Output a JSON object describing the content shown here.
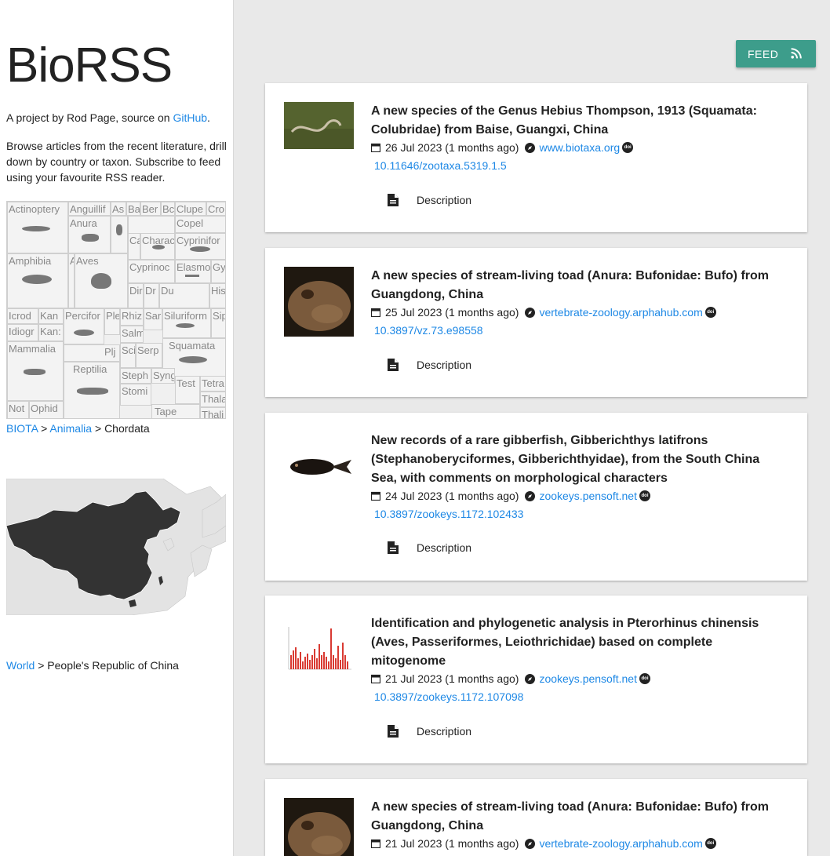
{
  "sidebar": {
    "site_title": "BioRSS",
    "intro_prefix": "A project by Rod Page, source on ",
    "intro_link": "GitHub",
    "intro_suffix": ".",
    "browse_text": "Browse articles from the recent literature, drill down by country or taxon. Subscribe to feed using your favourite RSS reader.",
    "treemap_labels": [
      "Actinoptery",
      "Anguillif",
      "As",
      "Ba",
      "Ber",
      "Bc",
      "Clupe",
      "Cro",
      "Anura",
      "Copel",
      "Ca",
      "Charac",
      "Cyprinifor",
      "Amphibia",
      "A",
      "Aves",
      "Cyprinoc",
      "Elasmo",
      "Gy",
      "Dir",
      "Dr",
      "Du",
      "His",
      "Icrod",
      "Kan",
      "Percifor",
      "Ple",
      "Rhiz",
      "Sar",
      "Siluriform",
      "Sip",
      "Idiogr",
      "Kan:",
      "Salm",
      "Mammalia",
      "Plj",
      "Squamata",
      "Sci",
      "Serp",
      "Reptilia",
      "Steph",
      "Syng",
      "Test",
      "Tetra",
      "Stomi",
      "Thala",
      "Not",
      "Ophid",
      "Tape",
      "Thali"
    ],
    "taxon_crumbs": {
      "link1": "BIOTA",
      "sep1": " > ",
      "link2": "Animalia",
      "sep2": " > ",
      "current": "Chordata"
    },
    "geo_crumbs": {
      "link1": "World",
      "sep1": " > ",
      "current": "People's Republic of China"
    }
  },
  "header": {
    "feed_label": "FEED"
  },
  "articles": [
    {
      "title": "A new species of the Genus Hebius Thompson, 1913 (Squamata: Colubridae) from Baise, Guangxi, China",
      "date": "26 Jul 2023 (1 months ago)",
      "source": "www.biotaxa.org",
      "doi": "10.11646/zootaxa.5319.1.5",
      "description_label": "Description"
    },
    {
      "title": "A new species of stream-living toad (Anura: Bufonidae: Bufo) from Guangdong, China",
      "date": "25 Jul 2023 (1 months ago)",
      "source": "vertebrate-zoology.arphahub.com",
      "doi": "10.3897/vz.73.e98558",
      "description_label": "Description"
    },
    {
      "title": "New records of a rare gibberfish, Gibberichthys latifrons (Stephanoberyciformes, Gibberichthyidae), from the South China Sea, with comments on morphological characters",
      "date": "24 Jul 2023 (1 months ago)",
      "source": "zookeys.pensoft.net",
      "doi": "10.3897/zookeys.1172.102433",
      "description_label": "Description"
    },
    {
      "title": "Identification and phylogenetic analysis in Pterorhinus chinensis (Aves, Passeriformes, Leiothrichidae) based on complete mitogenome",
      "date": "21 Jul 2023 (1 months ago)",
      "source": "zookeys.pensoft.net",
      "doi": "10.3897/zookeys.1172.107098",
      "description_label": "Description"
    },
    {
      "title": "A new species of stream-living toad (Anura: Bufonidae: Bufo) from Guangdong, China",
      "date": "21 Jul 2023 (1 months ago)",
      "source": "vertebrate-zoology.arphahub.com",
      "doi": "",
      "description_label": ""
    }
  ],
  "icons": {
    "rss": "rss-icon",
    "calendar": "calendar-icon",
    "compass": "compass-icon",
    "doi": "doi-icon",
    "document": "document-icon"
  },
  "colors": {
    "accent": "#3d9d8b",
    "link": "#1e88e5",
    "map_country": "#333333",
    "map_land": "#e3e3e3"
  }
}
